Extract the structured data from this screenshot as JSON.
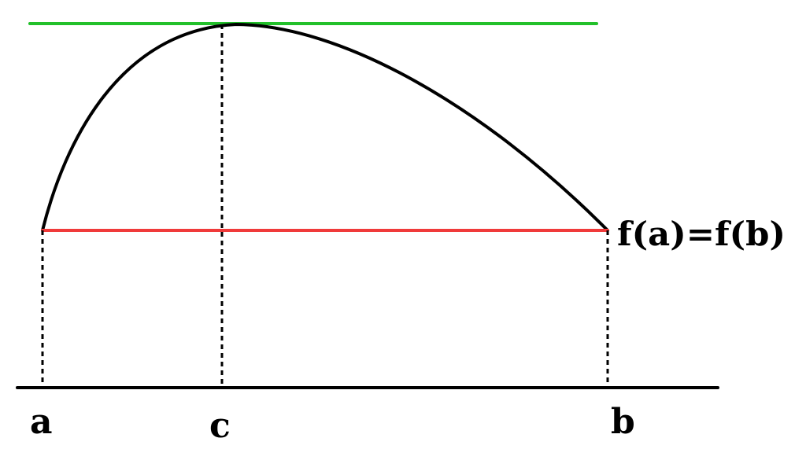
{
  "labels": {
    "a": "a",
    "c": "c",
    "b": "b",
    "equation": "f(a)=f(b)"
  },
  "colors": {
    "curve": "#000000",
    "tangent_line": "#22c02a",
    "secant_line": "#f03a3a",
    "axis": "#000000",
    "dashed_guides": "#000000"
  }
}
